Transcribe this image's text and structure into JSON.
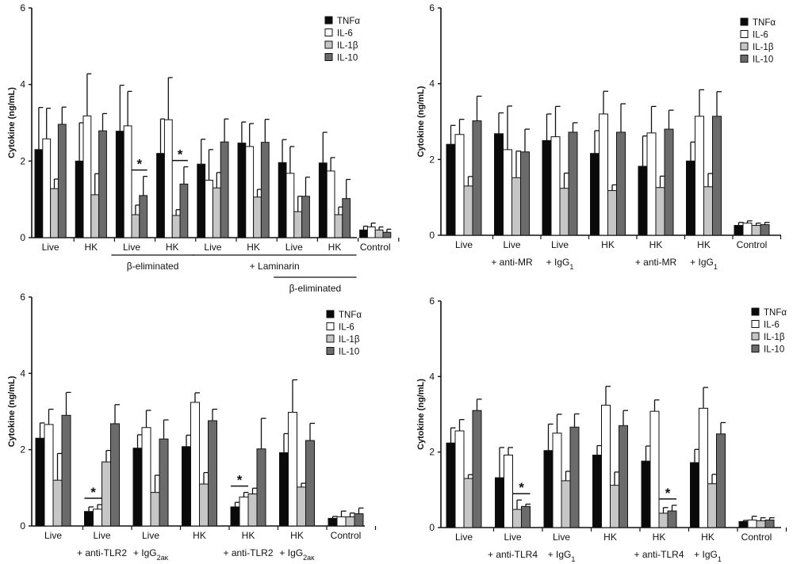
{
  "colors": {
    "TNFα": "#0a0a0a",
    "IL-6": "#ffffff",
    "IL-1β": "#c6c6c6",
    "IL-10": "#6b6b6b",
    "axis": "#111111"
  },
  "chart_data": [
    {
      "type": "bar",
      "panel": "top-left",
      "ylabel": "Cytokine (ng/mL)",
      "ylim": [
        0,
        6
      ],
      "yticks": [
        "0",
        "2",
        "4",
        "6"
      ],
      "categories": [
        "Live",
        "HK",
        "Live",
        "HK",
        "Live",
        "HK",
        "Live",
        "HK",
        "Control"
      ],
      "legend": [
        "TNFα",
        "IL-6",
        "IL-1β",
        "IL-10"
      ],
      "legend_position": "top-right",
      "series": [
        {
          "name": "TNFα",
          "values": [
            2.3,
            2.0,
            2.78,
            2.2,
            1.92,
            2.47,
            1.96,
            1.95,
            0.2
          ],
          "errors": [
            1.1,
            1.0,
            1.2,
            0.9,
            0.65,
            0.55,
            0.6,
            0.8,
            0.1
          ]
        },
        {
          "name": "IL-6",
          "values": [
            2.58,
            3.18,
            2.92,
            3.08,
            1.5,
            2.38,
            1.68,
            1.74,
            0.28
          ],
          "errors": [
            0.8,
            1.1,
            0.9,
            1.1,
            0.8,
            0.6,
            0.7,
            0.35,
            0.1
          ]
        },
        {
          "name": "IL-1β",
          "values": [
            1.28,
            1.12,
            0.6,
            0.58,
            1.3,
            1.06,
            0.68,
            0.6,
            0.2
          ],
          "errors": [
            0.25,
            0.55,
            0.25,
            0.15,
            0.4,
            0.2,
            0.4,
            0.2,
            0.08
          ]
        },
        {
          "name": "IL-10",
          "values": [
            2.96,
            2.79,
            1.1,
            1.4,
            2.5,
            2.49,
            1.08,
            1.02,
            0.14
          ],
          "errors": [
            0.45,
            0.45,
            0.5,
            0.45,
            0.6,
            0.6,
            0.5,
            0.5,
            0.08
          ]
        }
      ],
      "significance": [
        {
          "category": 2,
          "from": "IL-1β",
          "to": "IL-10",
          "text": "*"
        },
        {
          "category": 3,
          "from": "IL-1β",
          "to": "IL-10",
          "text": "*"
        }
      ],
      "group_labels": [
        {
          "text": "β-eliminated",
          "from": 2,
          "to": 3,
          "row": 1
        },
        {
          "text": "+ Laminarin",
          "from": 4,
          "to": 7,
          "row": 1
        },
        {
          "text": "β-eliminated",
          "from": 6,
          "to": 7,
          "row": 2
        }
      ]
    },
    {
      "type": "bar",
      "panel": "top-right",
      "ylabel": "Cytokine (ng/mL)",
      "ylim": [
        0,
        6
      ],
      "yticks": [
        "0",
        "2",
        "4",
        "6"
      ],
      "categories": [
        "Live",
        "Live",
        "Live",
        "HK",
        "HK",
        "HK",
        "Control"
      ],
      "sublabels": [
        "",
        "+ anti-MR",
        "+ IgG1",
        "",
        "+ anti-MR",
        "+ IgG1",
        ""
      ],
      "legend": [
        "TNFα",
        "IL-6",
        "IL-1β",
        "IL-10"
      ],
      "legend_position": "top-right",
      "series": [
        {
          "name": "TNFα",
          "values": [
            2.4,
            2.68,
            2.5,
            2.16,
            1.82,
            1.96,
            0.26
          ],
          "errors": [
            0.5,
            0.55,
            0.7,
            0.6,
            0.8,
            0.5,
            0.08
          ]
        },
        {
          "name": "IL-6",
          "values": [
            2.66,
            2.26,
            2.6,
            3.2,
            2.7,
            3.14,
            0.32
          ],
          "errors": [
            0.4,
            1.15,
            0.8,
            0.6,
            0.7,
            0.7,
            0.06
          ]
        },
        {
          "name": "IL-1β",
          "values": [
            1.3,
            1.52,
            1.24,
            1.18,
            1.26,
            1.28,
            0.26
          ],
          "errors": [
            0.25,
            0.7,
            0.4,
            0.15,
            0.3,
            0.35,
            0.06
          ]
        },
        {
          "name": "IL-10",
          "values": [
            3.02,
            2.2,
            2.72,
            2.72,
            2.8,
            3.14,
            0.28
          ],
          "errors": [
            0.65,
            0.6,
            0.25,
            0.75,
            0.5,
            0.65,
            0.06
          ]
        }
      ],
      "significance": [],
      "group_labels": []
    },
    {
      "type": "bar",
      "panel": "bottom-left",
      "ylabel": "Cytokine (ng/mL)",
      "ylim": [
        0,
        6
      ],
      "yticks": [
        "0",
        "2",
        "4",
        "6"
      ],
      "categories": [
        "Live",
        "Live",
        "Live",
        "HK",
        "HK",
        "HK",
        "Control"
      ],
      "sublabels": [
        "",
        "+ anti-TLR2",
        "+ IgG2aκ",
        "",
        "+ anti-TLR2",
        "+ IgG2aκ",
        ""
      ],
      "legend": [
        "TNFα",
        "IL-6",
        "IL-1β",
        "IL-10"
      ],
      "legend_position": "top-right",
      "series": [
        {
          "name": "TNFα",
          "values": [
            2.3,
            0.38,
            2.04,
            2.08,
            0.5,
            1.92,
            0.2
          ],
          "errors": [
            0.4,
            0.12,
            0.35,
            0.3,
            0.12,
            0.5,
            0.05
          ]
        },
        {
          "name": "IL-6",
          "values": [
            2.66,
            0.44,
            2.58,
            3.24,
            0.76,
            2.98,
            0.24
          ],
          "errors": [
            0.4,
            0.12,
            0.45,
            0.25,
            0.12,
            0.85,
            0.15
          ]
        },
        {
          "name": "IL-1β",
          "values": [
            1.2,
            1.68,
            0.88,
            1.1,
            0.84,
            1.02,
            0.24
          ],
          "errors": [
            0.7,
            0.3,
            0.45,
            0.3,
            0.15,
            0.1,
            0.1
          ]
        },
        {
          "name": "IL-10",
          "values": [
            2.9,
            2.68,
            2.28,
            2.76,
            2.02,
            2.24,
            0.32
          ],
          "errors": [
            0.6,
            0.5,
            0.5,
            0.3,
            0.8,
            0.45,
            0.15
          ]
        }
      ],
      "significance": [
        {
          "category": 1,
          "from": "TNFα",
          "to": "IL-6",
          "text": "*"
        },
        {
          "category": 4,
          "from": "TNFα",
          "to": "IL-6",
          "text": "*"
        }
      ],
      "group_labels": []
    },
    {
      "type": "bar",
      "panel": "bottom-right",
      "ylabel": "Cytokine (ng/mL)",
      "ylim": [
        0,
        6
      ],
      "yticks": [
        "0",
        "2",
        "4",
        "6"
      ],
      "categories": [
        "Live",
        "Live",
        "Live",
        "HK",
        "HK",
        "HK",
        "Control"
      ],
      "sublabels": [
        "",
        "+ anti-TLR4",
        "+ IgG1",
        "",
        "+ anti-TLR4",
        "+ IgG1",
        ""
      ],
      "legend": [
        "TNFα",
        "IL-6",
        "IL-1β",
        "IL-10"
      ],
      "legend_position": "top-right",
      "series": [
        {
          "name": "TNFα",
          "values": [
            2.24,
            1.32,
            2.04,
            1.92,
            1.76,
            1.72,
            0.16
          ],
          "errors": [
            0.4,
            0.8,
            0.7,
            0.25,
            0.4,
            0.35,
            0.03
          ]
        },
        {
          "name": "IL-6",
          "values": [
            2.56,
            1.92,
            2.5,
            3.24,
            3.08,
            3.16,
            0.2
          ],
          "errors": [
            0.3,
            0.2,
            0.5,
            0.5,
            0.3,
            0.55,
            0.1
          ]
        },
        {
          "name": "IL-1β",
          "values": [
            1.3,
            0.48,
            1.24,
            1.12,
            0.38,
            1.16,
            0.18
          ],
          "errors": [
            0.1,
            0.25,
            0.25,
            0.35,
            0.15,
            0.25,
            0.08
          ]
        },
        {
          "name": "IL-10",
          "values": [
            3.1,
            0.56,
            2.66,
            2.7,
            0.44,
            2.48,
            0.2
          ],
          "errors": [
            0.3,
            0.06,
            0.35,
            0.4,
            0.15,
            0.3,
            0.06
          ]
        }
      ],
      "significance": [
        {
          "category": 1,
          "from": "IL-1β",
          "to": "IL-10",
          "text": "*"
        },
        {
          "category": 4,
          "from": "IL-1β",
          "to": "IL-10",
          "text": "*"
        }
      ],
      "group_labels": []
    }
  ]
}
